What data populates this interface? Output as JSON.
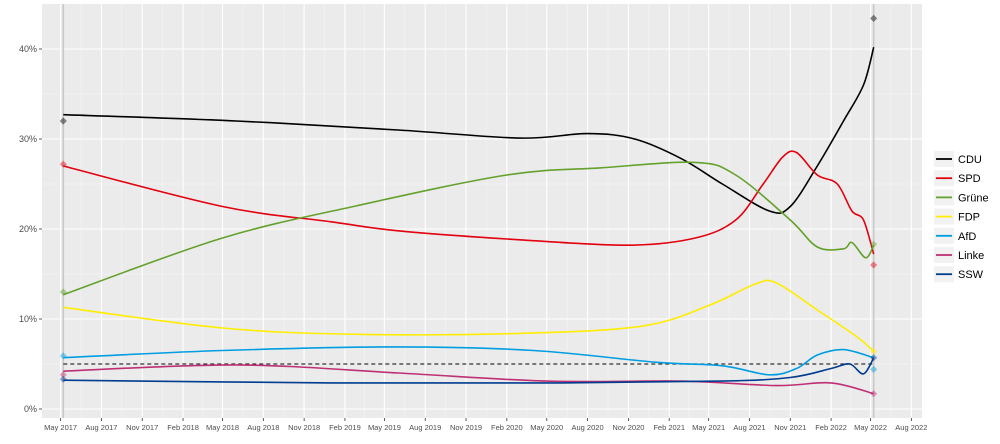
{
  "chart_data": {
    "type": "line",
    "title": "",
    "xlabel": "",
    "ylabel": "",
    "x_ticks": [
      "May 2017",
      "Aug 2017",
      "Nov 2017",
      "Feb 2018",
      "May 2018",
      "Aug 2018",
      "Nov 2018",
      "Feb 2019",
      "May 2019",
      "Aug 2019",
      "Nov 2019",
      "Feb 2020",
      "May 2020",
      "Aug 2020",
      "Nov 2020",
      "Feb 2021",
      "May 2021",
      "Aug 2021",
      "Nov 2021",
      "Feb 2022",
      "May 2022",
      "Aug 2022"
    ],
    "x_range": [
      "2017-03-20",
      "2022-08-25"
    ],
    "y_ticks": [
      "0%",
      "10%",
      "20%",
      "30%",
      "40%"
    ],
    "ylim": [
      -1,
      45
    ],
    "grid": true,
    "legend_position": "right",
    "threshold": 5,
    "series": [
      {
        "name": "CDU",
        "color": "#000000",
        "points": [
          [
            "2017-05-07",
            32.7
          ],
          [
            "2018-06-01",
            32
          ],
          [
            "2019-06-01",
            31
          ],
          [
            "2020-03-01",
            30.1
          ],
          [
            "2020-08-01",
            30.6
          ],
          [
            "2020-11-15",
            30
          ],
          [
            "2021-03-01",
            27.8
          ],
          [
            "2021-06-01",
            25
          ],
          [
            "2021-09-15",
            22
          ],
          [
            "2021-11-01",
            22.5
          ],
          [
            "2022-01-01",
            27
          ],
          [
            "2022-03-01",
            32
          ],
          [
            "2022-04-15",
            36
          ],
          [
            "2022-05-08",
            40.2
          ]
        ],
        "markers": [
          [
            "2017-05-07",
            32
          ],
          [
            "2022-05-08",
            43.4
          ]
        ]
      },
      {
        "name": "SPD",
        "color": "#e3000f",
        "points": [
          [
            "2017-05-07",
            27
          ],
          [
            "2018-05-01",
            22.5
          ],
          [
            "2019-01-01",
            20.8
          ],
          [
            "2019-06-01",
            19.8
          ],
          [
            "2020-03-01",
            18.8
          ],
          [
            "2020-11-01",
            18.2
          ],
          [
            "2021-04-01",
            19
          ],
          [
            "2021-07-01",
            21
          ],
          [
            "2021-09-01",
            25
          ],
          [
            "2021-10-15",
            28
          ],
          [
            "2021-11-15",
            28.5
          ],
          [
            "2022-01-01",
            26
          ],
          [
            "2022-02-15",
            25
          ],
          [
            "2022-03-20",
            22
          ],
          [
            "2022-04-15",
            21
          ],
          [
            "2022-05-08",
            17.2
          ]
        ],
        "markers": [
          [
            "2017-05-07",
            27.2
          ],
          [
            "2022-05-08",
            16
          ]
        ]
      },
      {
        "name": "Grüne",
        "color": "#64a12d",
        "points": [
          [
            "2017-05-07",
            12.7
          ],
          [
            "2018-05-01",
            19
          ],
          [
            "2019-03-01",
            22.6
          ],
          [
            "2020-02-01",
            26
          ],
          [
            "2020-09-01",
            26.8
          ],
          [
            "2021-04-01",
            27.4
          ],
          [
            "2021-07-01",
            26
          ],
          [
            "2021-11-01",
            21
          ],
          [
            "2022-01-01",
            18
          ],
          [
            "2022-03-01",
            17.8
          ],
          [
            "2022-03-20",
            18.5
          ],
          [
            "2022-04-20",
            16.8
          ],
          [
            "2022-05-08",
            18.2
          ]
        ],
        "markers": [
          [
            "2017-05-07",
            13
          ],
          [
            "2022-05-08",
            18.3
          ]
        ]
      },
      {
        "name": "FDP",
        "color": "#ffed00",
        "points": [
          [
            "2017-05-07",
            11.3
          ],
          [
            "2018-05-01",
            9
          ],
          [
            "2019-03-01",
            8.3
          ],
          [
            "2020-03-01",
            8.4
          ],
          [
            "2020-12-01",
            9.2
          ],
          [
            "2021-05-01",
            11.5
          ],
          [
            "2021-08-15",
            13.9
          ],
          [
            "2021-10-01",
            14
          ],
          [
            "2022-01-01",
            11
          ],
          [
            "2022-04-01",
            8
          ],
          [
            "2022-05-08",
            6.4
          ]
        ],
        "markers": [
          [
            "2022-05-08",
            6.4
          ]
        ]
      },
      {
        "name": "AfD",
        "color": "#009ee0",
        "points": [
          [
            "2017-05-07",
            5.7
          ],
          [
            "2018-05-01",
            6.5
          ],
          [
            "2019-06-01",
            6.9
          ],
          [
            "2020-04-01",
            6.5
          ],
          [
            "2021-01-01",
            5.2
          ],
          [
            "2021-06-01",
            4.8
          ],
          [
            "2021-09-15",
            3.8
          ],
          [
            "2021-11-15",
            4.5
          ],
          [
            "2022-01-01",
            6
          ],
          [
            "2022-03-01",
            6.6
          ],
          [
            "2022-05-08",
            5.7
          ]
        ],
        "markers": [
          [
            "2017-05-07",
            5.9
          ],
          [
            "2022-05-08",
            4.4
          ]
        ]
      },
      {
        "name": "Linke",
        "color": "#be3075",
        "points": [
          [
            "2017-05-07",
            4.2
          ],
          [
            "2018-06-01",
            4.9
          ],
          [
            "2019-06-01",
            4
          ],
          [
            "2020-05-01",
            3.1
          ],
          [
            "2021-03-01",
            3.1
          ],
          [
            "2021-10-01",
            2.6
          ],
          [
            "2022-02-01",
            2.9
          ],
          [
            "2022-05-08",
            1.7
          ]
        ],
        "markers": [
          [
            "2017-05-07",
            3.8
          ],
          [
            "2022-05-08",
            1.7
          ]
        ]
      },
      {
        "name": "SSW",
        "color": "#003c8f",
        "points": [
          [
            "2017-05-07",
            3.2
          ],
          [
            "2019-01-01",
            2.9
          ],
          [
            "2020-06-01",
            2.9
          ],
          [
            "2021-06-01",
            3.1
          ],
          [
            "2021-11-01",
            3.5
          ],
          [
            "2022-02-01",
            4.5
          ],
          [
            "2022-03-15",
            5
          ],
          [
            "2022-04-15",
            3.9
          ],
          [
            "2022-05-08",
            5.7
          ]
        ],
        "markers": [
          [
            "2017-05-07",
            3.3
          ],
          [
            "2022-05-08",
            5.7
          ]
        ]
      }
    ]
  }
}
